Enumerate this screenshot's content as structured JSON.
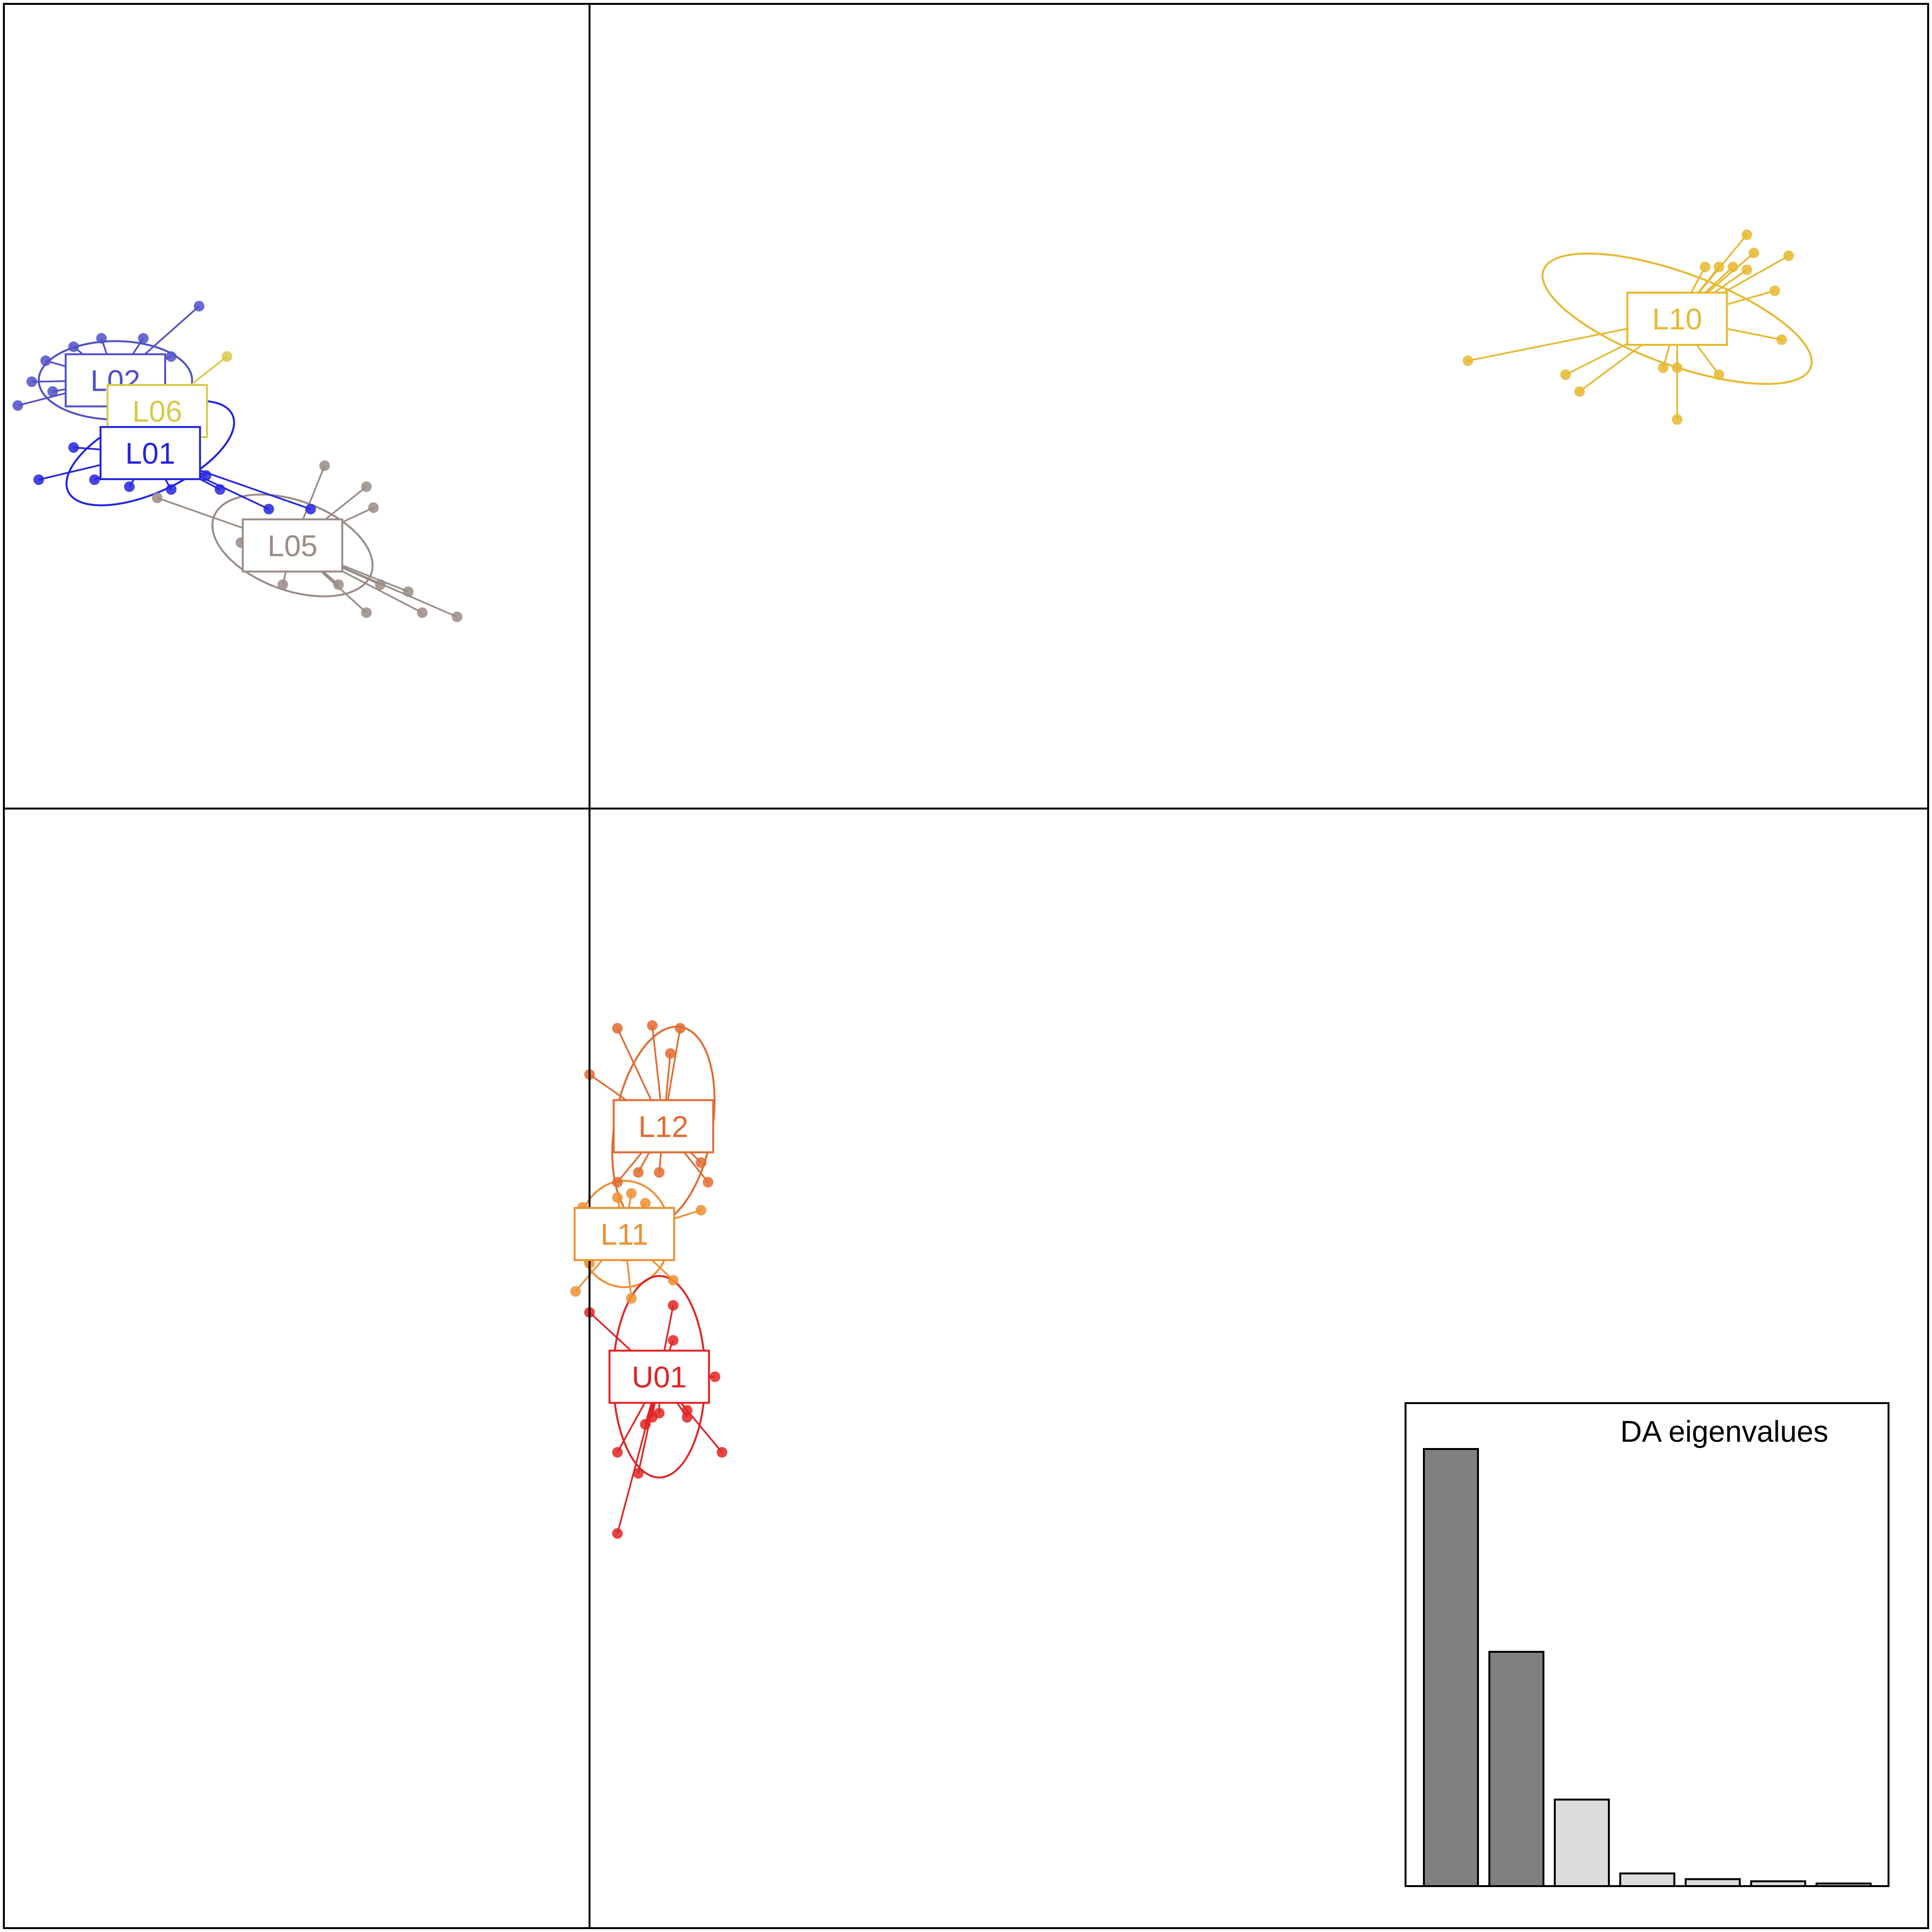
{
  "chart_data": [
    {
      "type": "scatter",
      "title": "",
      "xlabel": "",
      "ylabel": "",
      "axes": "zero-lines",
      "grid": false,
      "groups": [
        {
          "name": "L02",
          "color": "#5050c8",
          "centroid": [
            -3.4,
            3.06
          ],
          "ellipse": {
            "rx": 0.55,
            "ry": 0.28,
            "angle": 0
          },
          "points": [
            [
              -2.8,
              3.59
            ],
            [
              -3.2,
              3.36
            ],
            [
              -3.5,
              3.36
            ],
            [
              -3.7,
              3.3
            ],
            [
              -3.9,
              3.2
            ],
            [
              -4.0,
              3.05
            ],
            [
              -4.1,
              2.88
            ],
            [
              -3.85,
              2.98
            ],
            [
              -3.0,
              3.23
            ]
          ]
        },
        {
          "name": "L06",
          "color": "#d8c84a",
          "centroid": [
            -3.1,
            2.84
          ],
          "points": [
            [
              -2.6,
              3.23
            ]
          ]
        },
        {
          "name": "L01",
          "color": "#2424e0",
          "centroid": [
            -3.15,
            2.54
          ],
          "ellipse": {
            "rx": 0.65,
            "ry": 0.28,
            "angle": 25
          },
          "points": [
            [
              -3.95,
              2.35
            ],
            [
              -3.55,
              2.35
            ],
            [
              -3.3,
              2.3
            ],
            [
              -3.0,
              2.28
            ],
            [
              -2.65,
              2.28
            ],
            [
              -2.3,
              2.14
            ],
            [
              -2.0,
              2.14
            ],
            [
              -2.75,
              2.38
            ],
            [
              -3.7,
              2.58
            ]
          ]
        },
        {
          "name": "L05",
          "color": "#9a8c86",
          "centroid": [
            -2.13,
            1.88
          ],
          "ellipse": {
            "rx": 0.6,
            "ry": 0.32,
            "angle": -20
          },
          "points": [
            [
              -3.1,
              2.22
            ],
            [
              -1.9,
              2.45
            ],
            [
              -1.6,
              2.3
            ],
            [
              -1.55,
              2.15
            ],
            [
              -2.5,
              1.9
            ],
            [
              -2.2,
              1.6
            ],
            [
              -1.8,
              1.6
            ],
            [
              -1.5,
              1.6
            ],
            [
              -1.3,
              1.55
            ],
            [
              -1.6,
              1.4
            ],
            [
              -1.2,
              1.4
            ],
            [
              -0.95,
              1.37
            ]
          ]
        },
        {
          "name": "L10",
          "color": "#e6b830",
          "centroid": [
            7.8,
            3.5
          ],
          "ellipse": {
            "rx": 1.02,
            "ry": 0.33,
            "angle": -20
          },
          "points": [
            [
              6.3,
              3.2
            ],
            [
              7.0,
              3.1
            ],
            [
              7.1,
              2.98
            ],
            [
              7.7,
              3.15
            ],
            [
              7.8,
              3.15
            ],
            [
              8.1,
              3.1
            ],
            [
              7.8,
              2.78
            ],
            [
              8.55,
              3.35
            ],
            [
              8.5,
              3.7
            ],
            [
              8.3,
              3.85
            ],
            [
              8.35,
              3.97
            ],
            [
              8.6,
              3.95
            ],
            [
              8.3,
              4.1
            ],
            [
              8.0,
              3.87
            ],
            [
              8.2,
              3.87
            ],
            [
              8.1,
              3.87
            ]
          ]
        },
        {
          "name": "L12",
          "color": "#e26a30",
          "centroid": [
            0.53,
            -2.27
          ],
          "ellipse": {
            "rx": 0.35,
            "ry": 0.72,
            "angle": -10
          },
          "points": [
            [
              0.2,
              -1.57
            ],
            [
              0.0,
              -1.9
            ],
            [
              0.45,
              -1.55
            ],
            [
              0.65,
              -1.57
            ],
            [
              0.58,
              -1.75
            ],
            [
              0.8,
              -2.53
            ],
            [
              0.85,
              -2.67
            ],
            [
              0.5,
              -2.6
            ],
            [
              0.35,
              -2.6
            ],
            [
              0.2,
              -2.67
            ]
          ]
        },
        {
          "name": "L11",
          "color": "#ee8f33",
          "centroid": [
            0.25,
            -3.04
          ],
          "ellipse": {
            "rx": 0.33,
            "ry": 0.38,
            "angle": 0
          },
          "points": [
            [
              -0.1,
              -3.45
            ],
            [
              0.3,
              -3.5
            ],
            [
              0.6,
              -3.37
            ],
            [
              0.8,
              -2.87
            ],
            [
              0.2,
              -2.78
            ],
            [
              0.3,
              -2.75
            ],
            [
              0.4,
              -2.82
            ],
            [
              -0.05,
              -2.85
            ],
            [
              0.25,
              -3.2
            ],
            [
              0.0,
              -3.25
            ],
            [
              0.55,
              -3.1
            ]
          ]
        },
        {
          "name": "U01",
          "color": "#e02424",
          "centroid": [
            0.5,
            -4.06
          ],
          "ellipse": {
            "rx": 0.33,
            "ry": 0.72,
            "angle": 0
          },
          "points": [
            [
              0.0,
              -3.6
            ],
            [
              0.6,
              -3.55
            ],
            [
              0.6,
              -3.8
            ],
            [
              0.9,
              -4.06
            ],
            [
              0.95,
              -4.6
            ],
            [
              0.7,
              -4.35
            ],
            [
              0.5,
              -4.32
            ],
            [
              0.45,
              -4.35
            ],
            [
              0.4,
              -4.4
            ],
            [
              0.2,
              -4.6
            ],
            [
              0.35,
              -4.75
            ],
            [
              0.2,
              -5.18
            ],
            [
              0.7,
              -4.3
            ],
            [
              0.55,
              -4.0
            ]
          ]
        }
      ],
      "xlim": [
        -4.2,
        9.6
      ],
      "ylim": [
        -8.0,
        5.75
      ]
    },
    {
      "type": "bar",
      "title": "DA eigenvalues",
      "xlabel": "",
      "ylabel": "",
      "values": [
        100,
        53.6,
        19.8,
        2.9,
        1.6,
        1.1,
        0.6
      ],
      "highlight": [
        true,
        true,
        false,
        false,
        false,
        false,
        false
      ],
      "colors": {
        "retained": "#808080",
        "other": "#dcdcdc"
      }
    }
  ]
}
